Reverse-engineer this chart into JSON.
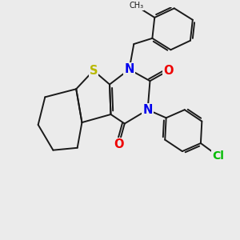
{
  "background_color": "#ebebeb",
  "bond_color": "#1a1a1a",
  "S_color": "#b8b800",
  "N_color": "#0000ee",
  "O_color": "#ee0000",
  "Cl_color": "#00bb00",
  "line_width": 1.4,
  "figsize": [
    3.0,
    3.0
  ],
  "dpi": 100,
  "xlim": [
    0,
    10
  ],
  "ylim": [
    0,
    10
  ]
}
